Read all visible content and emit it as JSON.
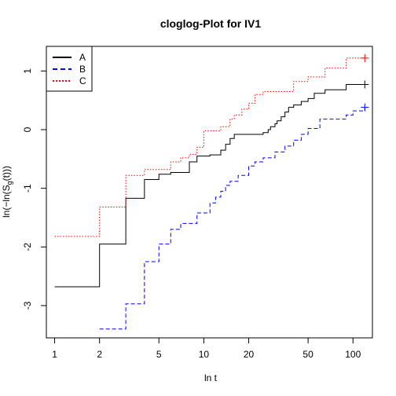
{
  "chart_data": {
    "type": "line",
    "title": "cloglog-Plot for IV1",
    "xlabel": "ln t",
    "ylabel": "ln(−ln(S",
    "ylabel_sub": "g",
    "ylabel_tail": "(t)))",
    "x_scale": "log",
    "xlim": [
      0.88,
      135
    ],
    "ylim": [
      -3.55,
      1.42
    ],
    "x_ticks": [
      1,
      2,
      5,
      10,
      20,
      50,
      100
    ],
    "x_tick_labels": [
      "1",
      "2",
      "5",
      "10",
      "20",
      "50",
      "100"
    ],
    "y_ticks": [
      -3,
      -2,
      -1,
      0,
      1
    ],
    "y_tick_labels": [
      "-3",
      "-2",
      "-1",
      "0",
      "1"
    ],
    "legend_position": "top-left",
    "series": [
      {
        "name": "A",
        "color": "#000000",
        "linestyle": "solid",
        "x": [
          1,
          2,
          3,
          4,
          5,
          6,
          8,
          9,
          11,
          13,
          14,
          15,
          16,
          25,
          27,
          28,
          30,
          31,
          33,
          35,
          37,
          40,
          45,
          50,
          55,
          65,
          90,
          120
        ],
        "y": [
          -2.68,
          -1.95,
          -1.17,
          -0.85,
          -0.76,
          -0.73,
          -0.55,
          -0.45,
          -0.43,
          -0.35,
          -0.25,
          -0.15,
          -0.08,
          -0.05,
          0.0,
          0.05,
          0.1,
          0.15,
          0.22,
          0.3,
          0.38,
          0.42,
          0.48,
          0.53,
          0.62,
          0.68,
          0.77,
          0.77
        ]
      },
      {
        "name": "B",
        "color": "#0000ff",
        "linestyle": "dashed",
        "x": [
          2,
          3,
          4,
          5,
          6,
          7,
          9,
          11,
          12,
          13,
          14,
          15,
          17,
          20,
          22,
          25,
          30,
          35,
          40,
          45,
          50,
          60,
          90,
          100,
          120
        ],
        "y": [
          -3.4,
          -2.97,
          -2.25,
          -1.95,
          -1.7,
          -1.6,
          -1.42,
          -1.25,
          -1.15,
          -1.05,
          -0.95,
          -0.88,
          -0.78,
          -0.62,
          -0.55,
          -0.48,
          -0.38,
          -0.28,
          -0.18,
          -0.08,
          0.02,
          0.18,
          0.25,
          0.32,
          0.38
        ]
      },
      {
        "name": "C",
        "color": "#ff0000",
        "linestyle": "dotted",
        "x": [
          1,
          2,
          3,
          4,
          6,
          7,
          8,
          9,
          10,
          13,
          15,
          16,
          18,
          20,
          22,
          25,
          40,
          50,
          65,
          90,
          120
        ],
        "y": [
          -1.82,
          -1.32,
          -0.78,
          -0.68,
          -0.55,
          -0.48,
          -0.42,
          -0.3,
          -0.02,
          0.05,
          0.18,
          0.25,
          0.35,
          0.45,
          0.6,
          0.65,
          0.82,
          0.9,
          1.05,
          1.22,
          1.22
        ]
      }
    ]
  }
}
